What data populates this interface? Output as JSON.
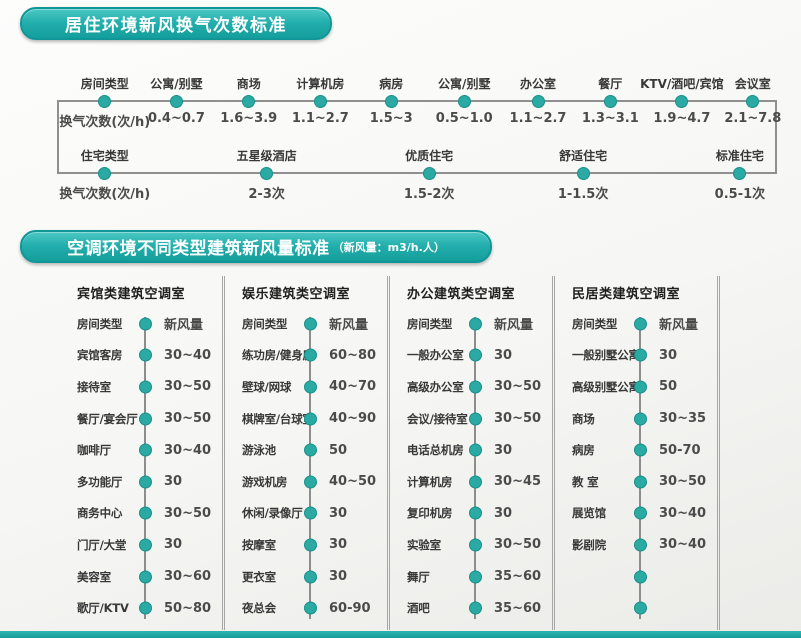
{
  "colors": {
    "accent_teal": "#22aeac",
    "dot_teal": "#2aaaa2",
    "line_gray": "#8d8d8d"
  },
  "section1": {
    "title": "居住环境新风换气次数标准",
    "row1": [
      {
        "top": "房间类型",
        "bottom": "换气次数(次/h)"
      },
      {
        "top": "公寓/别墅",
        "bottom": "0.4~0.7"
      },
      {
        "top": "商场",
        "bottom": "1.6~3.9"
      },
      {
        "top": "计算机房",
        "bottom": "1.1~2.7"
      },
      {
        "top": "病房",
        "bottom": "1.5~3"
      },
      {
        "top": "公寓/别墅",
        "bottom": "0.5~1.0"
      },
      {
        "top": "办公室",
        "bottom": "1.1~2.7"
      },
      {
        "top": "餐厅",
        "bottom": "1.3~3.1"
      },
      {
        "top": "KTV/酒吧/宾馆",
        "bottom": "1.9~4.7"
      },
      {
        "top": "会议室",
        "bottom": "2.1~7.8"
      }
    ],
    "row2": [
      {
        "top": "住宅类型",
        "bottom": "换气次数(次/h)"
      },
      {
        "top": "五星级酒店",
        "bottom": "2-3次"
      },
      {
        "top": "优质住宅",
        "bottom": "1.5-2次"
      },
      {
        "top": "舒适住宅",
        "bottom": "1-1.5次"
      },
      {
        "top": "标准住宅",
        "bottom": "0.5-1次"
      }
    ]
  },
  "section2": {
    "title": "空调环境不同类型建筑新风量标准",
    "subtitle": "（新风量：m3/h.人）",
    "columns": [
      {
        "title": "宾馆类建筑空调室",
        "rows": [
          {
            "label": "房间类型",
            "value": "新风量"
          },
          {
            "label": "宾馆客房",
            "value": "30~40"
          },
          {
            "label": "接待室",
            "value": "30~50"
          },
          {
            "label": "餐厅/宴会厅",
            "value": "30~50"
          },
          {
            "label": "咖啡厅",
            "value": "30~40"
          },
          {
            "label": "多功能厅",
            "value": "30"
          },
          {
            "label": "商务中心",
            "value": "30~50"
          },
          {
            "label": "门厅/大堂",
            "value": "30"
          },
          {
            "label": "美容室",
            "value": "30~60"
          },
          {
            "label": "歌厅/KTV",
            "value": "50~80"
          }
        ]
      },
      {
        "title": "娱乐建筑类空调室",
        "rows": [
          {
            "label": "房间类型",
            "value": "新风量"
          },
          {
            "label": "练功房/健身房",
            "value": "60~80"
          },
          {
            "label": "壁球/网球",
            "value": "40~70"
          },
          {
            "label": "棋牌室/台球室",
            "value": "40~90"
          },
          {
            "label": "游泳池",
            "value": "50"
          },
          {
            "label": "游戏机房",
            "value": "40~50"
          },
          {
            "label": "休闲/录像厅",
            "value": "30"
          },
          {
            "label": "按摩室",
            "value": "30"
          },
          {
            "label": "更衣室",
            "value": "30"
          },
          {
            "label": "夜总会",
            "value": "60-90"
          }
        ]
      },
      {
        "title": "办公建筑类空调室",
        "rows": [
          {
            "label": "房间类型",
            "value": "新风量"
          },
          {
            "label": "一般办公室",
            "value": "30"
          },
          {
            "label": "高级办公室",
            "value": "30~50"
          },
          {
            "label": "会议/接待室",
            "value": "30~50"
          },
          {
            "label": "电话总机房",
            "value": "30"
          },
          {
            "label": "计算机房",
            "value": "30~45"
          },
          {
            "label": "复印机房",
            "value": "30"
          },
          {
            "label": "实验室",
            "value": "30~50"
          },
          {
            "label": "舞厅",
            "value": "35~60"
          },
          {
            "label": "酒吧",
            "value": "35~60"
          }
        ]
      },
      {
        "title": "民居类建筑空调室",
        "rows": [
          {
            "label": "房间类型",
            "value": "新风量"
          },
          {
            "label": "一般别墅公寓",
            "value": "30"
          },
          {
            "label": "高级别墅公寓",
            "value": "50"
          },
          {
            "label": "商场",
            "value": "30~35"
          },
          {
            "label": "病房",
            "value": "50-70"
          },
          {
            "label": "教 室",
            "value": "30~50"
          },
          {
            "label": "展览馆",
            "value": "30~40"
          },
          {
            "label": "影剧院",
            "value": "30~40"
          },
          {
            "label": "",
            "value": ""
          },
          {
            "label": "",
            "value": ""
          }
        ]
      }
    ]
  }
}
